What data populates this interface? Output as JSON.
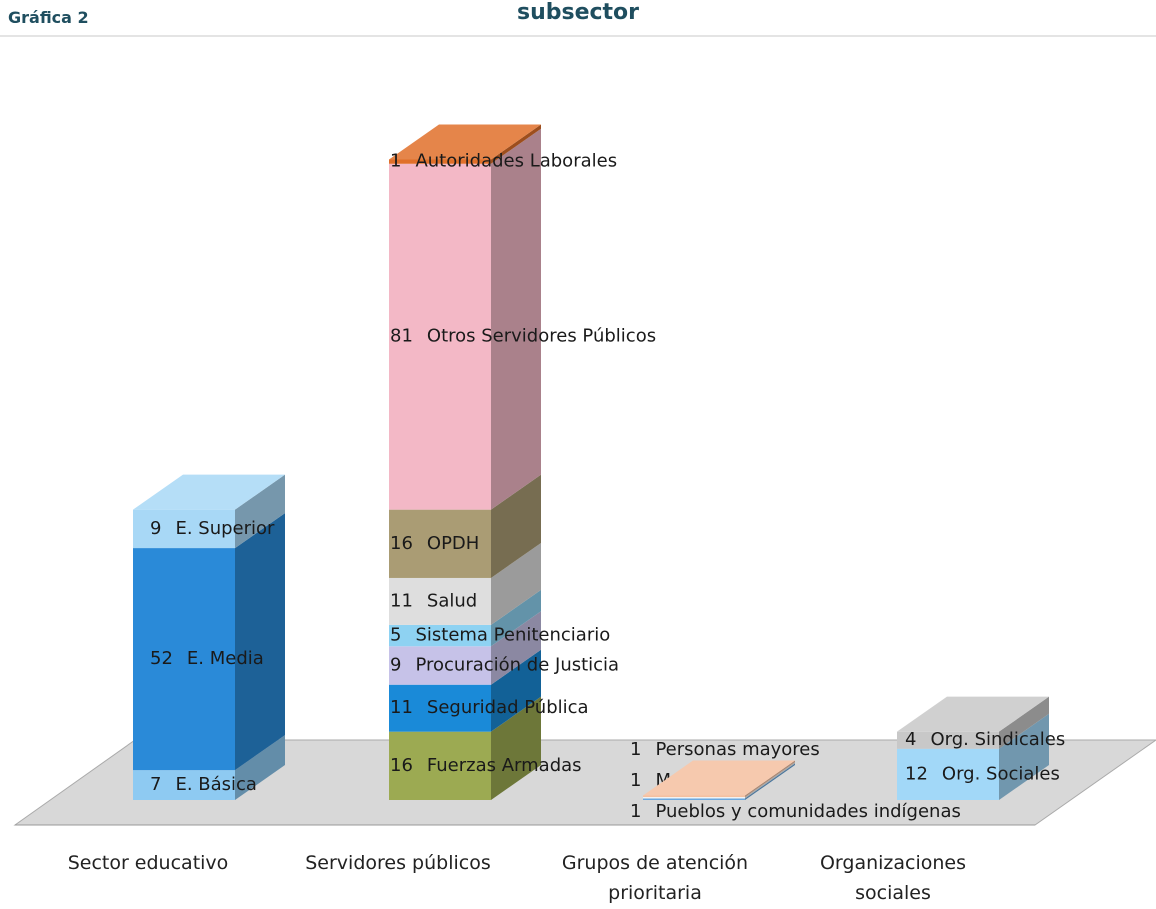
{
  "chart_data": {
    "type": "bar3d_stacked",
    "title": "subsector",
    "label": "Gráfica 2",
    "categories": [
      "Sector educativo",
      "Servidores públicos",
      "Grupos de atención prioritaria",
      "Organizaciones sociales"
    ],
    "groups": [
      {
        "segments": [
          {
            "name": "E. Básica",
            "value": 7,
            "color": "#8ecaf2"
          },
          {
            "name": "E. Media",
            "value": 52,
            "color": "#2a8ad8"
          },
          {
            "name": "E. Superior",
            "value": 9,
            "color": "#a8d8f6"
          }
        ]
      },
      {
        "segments": [
          {
            "name": "Fuerzas Armadas",
            "value": 16,
            "color": "#9caa52"
          },
          {
            "name": "Seguridad Pública",
            "value": 11,
            "color": "#1a8ad8"
          },
          {
            "name": "Procuración de Justicia",
            "value": 9,
            "color": "#c6c2e8"
          },
          {
            "name": "Sistema Penitenciario",
            "value": 5,
            "color": "#8ed2f2"
          },
          {
            "name": "Salud",
            "value": 11,
            "color": "#dedede"
          },
          {
            "name": "OPDH",
            "value": 16,
            "color": "#aa9c74"
          },
          {
            "name": "Otros Servidores Públicos",
            "value": 81,
            "color": "#f3b8c6"
          },
          {
            "name": "Autoridades Laborales",
            "value": 1,
            "color": "#e0702a"
          }
        ]
      },
      {
        "segments": [
          {
            "name": "Pueblos y comunidades indígenas",
            "value": 1,
            "color": "#6aa8e0"
          },
          {
            "name": "Mujer",
            "value": 1,
            "color": "#f2f2f2"
          },
          {
            "name": "Personas mayores",
            "value": 1,
            "color": "#f4c0a0"
          }
        ]
      },
      {
        "segments": [
          {
            "name": "Org. Sociales",
            "value": 12,
            "color": "#a2d8f8"
          },
          {
            "name": "Org. Sindicales",
            "value": 4,
            "color": "#c8c8c8"
          }
        ]
      }
    ]
  }
}
